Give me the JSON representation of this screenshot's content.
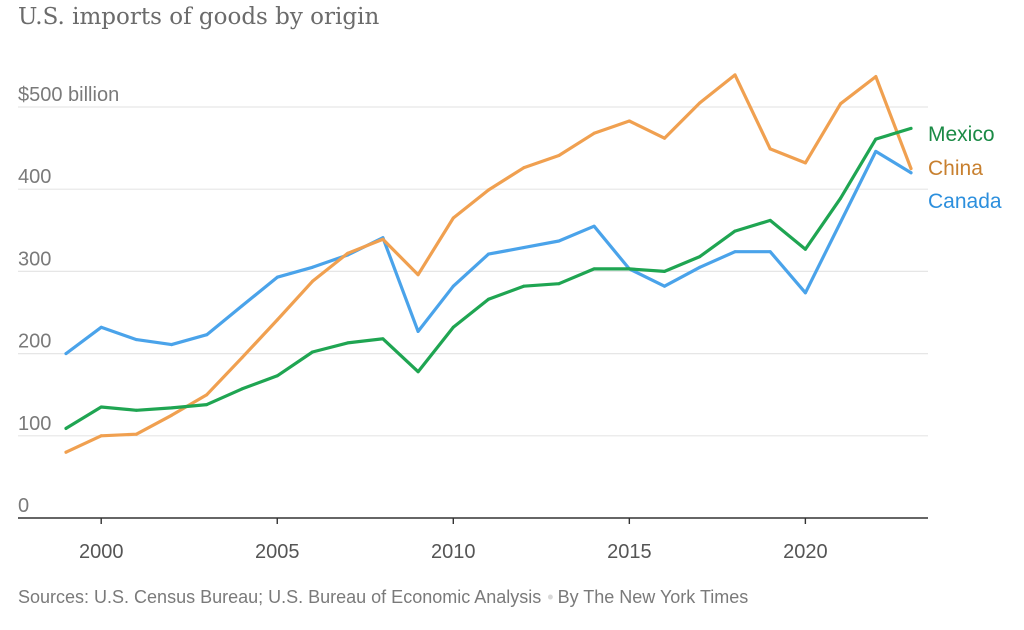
{
  "header": {
    "title": "U.S. imports of goods by origin"
  },
  "footer": {
    "sources": "Sources: U.S. Census Bureau; U.S. Bureau of Economic Analysis",
    "separator": "•",
    "byline": "By The New York Times"
  },
  "chart_data": {
    "type": "line",
    "title": "U.S. imports of goods by origin",
    "xlabel": "",
    "ylabel": "",
    "ylim": [
      0,
      500
    ],
    "xlim": [
      1999,
      2023
    ],
    "y_ticks": [
      {
        "value": 500,
        "label": "$500 billion"
      },
      {
        "value": 400,
        "label": "400"
      },
      {
        "value": 300,
        "label": "300"
      },
      {
        "value": 200,
        "label": "200"
      },
      {
        "value": 100,
        "label": "100"
      },
      {
        "value": 0,
        "label": "0"
      }
    ],
    "x_ticks": [
      {
        "value": 2000,
        "label": "2000"
      },
      {
        "value": 2005,
        "label": "2005"
      },
      {
        "value": 2010,
        "label": "2010"
      },
      {
        "value": 2015,
        "label": "2015"
      },
      {
        "value": 2020,
        "label": "2020"
      }
    ],
    "grid": true,
    "x": [
      1999,
      2000,
      2001,
      2002,
      2003,
      2004,
      2005,
      2006,
      2007,
      2008,
      2009,
      2010,
      2011,
      2012,
      2013,
      2014,
      2015,
      2016,
      2017,
      2018,
      2019,
      2020,
      2021,
      2022,
      2023
    ],
    "series": [
      {
        "name": "Canada",
        "color": "#4aa3ea",
        "values": [
          200,
          232,
          217,
          211,
          223,
          258,
          293,
          305,
          320,
          341,
          227,
          282,
          321,
          329,
          337,
          355,
          303,
          282,
          305,
          324,
          324,
          274,
          360,
          446,
          420
        ]
      },
      {
        "name": "China",
        "color": "#f0a050",
        "values": [
          80,
          100,
          102,
          125,
          150,
          195,
          241,
          288,
          322,
          339,
          296,
          365,
          399,
          426,
          441,
          468,
          483,
          462,
          505,
          539,
          449,
          432,
          504,
          537,
          425
        ]
      },
      {
        "name": "Mexico",
        "color": "#1fa552",
        "values": [
          109,
          135,
          131,
          134,
          138,
          157,
          173,
          202,
          213,
          218,
          178,
          232,
          266,
          282,
          285,
          303,
          303,
          300,
          318,
          349,
          362,
          327,
          389,
          461,
          474
        ]
      }
    ],
    "legend": [
      {
        "name": "Mexico",
        "color": "#1a8a45"
      },
      {
        "name": "China",
        "color": "#c8802f"
      },
      {
        "name": "Canada",
        "color": "#2c8fdd"
      }
    ]
  }
}
